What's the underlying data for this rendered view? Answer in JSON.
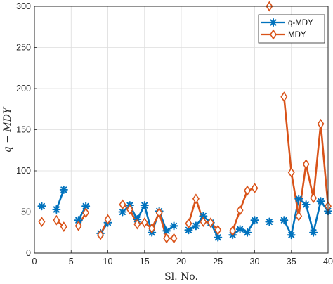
{
  "chart_data": {
    "type": "line",
    "xlabel": "Sl. No.",
    "ylabel": "q − MDY",
    "xlim": [
      0,
      40
    ],
    "ylim": [
      0,
      300
    ],
    "xticks": [
      0,
      5,
      10,
      15,
      20,
      25,
      30,
      35,
      40
    ],
    "yticks": [
      0,
      50,
      100,
      150,
      200,
      250,
      300
    ],
    "grid": true,
    "legend_position": "top-right",
    "series": [
      {
        "name": "q-MDY",
        "color": "#0072BD",
        "marker": "asterisk",
        "x": [
          1,
          3,
          4,
          6,
          7,
          9,
          10,
          12,
          13,
          14,
          15,
          16,
          17,
          18,
          19,
          21,
          22,
          23,
          24,
          25,
          27,
          28,
          29,
          30,
          32,
          34,
          35,
          36,
          37,
          38,
          39,
          40
        ],
        "values": [
          57,
          53,
          77,
          40,
          57,
          24,
          37,
          50,
          58,
          41,
          58,
          25,
          51,
          27,
          33,
          28,
          33,
          45,
          37,
          19,
          22,
          29,
          25,
          40,
          38,
          40,
          22,
          66,
          59,
          25,
          63,
          51
        ],
        "segments": [
          [
            1
          ],
          [
            3,
            4
          ],
          [
            6,
            7
          ],
          [
            9,
            10
          ],
          [
            12,
            13,
            14,
            15,
            16,
            17,
            18,
            19
          ],
          [
            21,
            22,
            23,
            24,
            25
          ],
          [
            27,
            28,
            29,
            30
          ],
          [
            32
          ],
          [
            34,
            35,
            36,
            37,
            38,
            39,
            40
          ]
        ]
      },
      {
        "name": "MDY",
        "color": "#D95319",
        "marker": "diamond",
        "x": [
          1,
          3,
          4,
          6,
          7,
          9,
          10,
          12,
          13,
          14,
          15,
          16,
          17,
          18,
          19,
          21,
          22,
          23,
          24,
          25,
          27,
          28,
          29,
          30,
          32,
          34,
          35,
          36,
          37,
          38,
          39,
          40
        ],
        "values": [
          38,
          40,
          32,
          33,
          49,
          22,
          41,
          59,
          53,
          35,
          37,
          30,
          49,
          18,
          18,
          36,
          66,
          38,
          37,
          28,
          27,
          52,
          76,
          79,
          300,
          190,
          98,
          45,
          108,
          67,
          157,
          57
        ],
        "segments": [
          [
            1
          ],
          [
            3,
            4
          ],
          [
            6,
            7
          ],
          [
            9,
            10
          ],
          [
            12,
            13,
            14,
            15,
            16,
            17,
            18,
            19
          ],
          [
            21,
            22,
            23,
            24,
            25
          ],
          [
            27,
            28,
            29,
            30
          ],
          [
            32
          ],
          [
            34,
            35,
            36,
            37,
            38,
            39,
            40
          ]
        ]
      }
    ]
  }
}
